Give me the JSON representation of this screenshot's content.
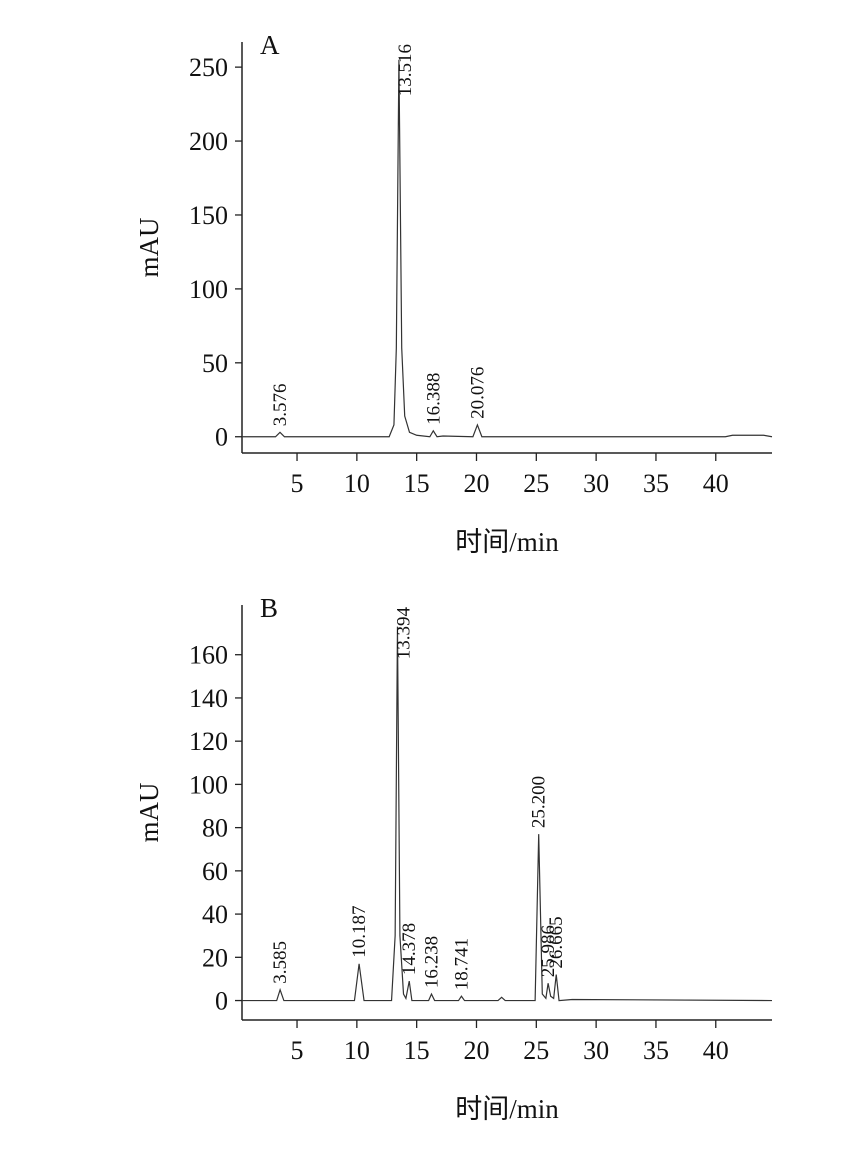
{
  "chart_data": [
    {
      "type": "line",
      "panel": "A",
      "ylabel": "mAU",
      "xlabel": "时间/min",
      "color": "#333333",
      "xlim": [
        0.4,
        44.7
      ],
      "ylim": [
        -11,
        267
      ],
      "xticks": [
        5,
        10,
        15,
        20,
        25,
        30,
        35,
        40
      ],
      "yticks": [
        0,
        50,
        100,
        150,
        200,
        250
      ],
      "x": [
        0.4,
        3.2,
        3.576,
        3.95,
        12.7,
        13.1,
        13.3,
        13.516,
        13.75,
        14.0,
        14.4,
        15.0,
        16.1,
        16.388,
        16.7,
        17.2,
        19.7,
        20.076,
        20.45,
        40.8,
        41.4,
        44.0,
        44.7
      ],
      "values": [
        0,
        0,
        3,
        0,
        0,
        8,
        60,
        255,
        60,
        14,
        3,
        1,
        0,
        4,
        0,
        0.5,
        0,
        8,
        0,
        0,
        1,
        1,
        0
      ],
      "annotations": [
        {
          "text": "3.576",
          "x": 3.576,
          "y": 3
        },
        {
          "text": "13.516",
          "x": 13.516,
          "y": 255
        },
        {
          "text": "16.388",
          "x": 16.388,
          "y": 4
        },
        {
          "text": "20.076",
          "x": 20.076,
          "y": 8
        }
      ]
    },
    {
      "type": "line",
      "panel": "B",
      "ylabel": "mAU",
      "xlabel": "时间/min",
      "color": "#333333",
      "xlim": [
        0.4,
        44.7
      ],
      "ylim": [
        -9,
        183
      ],
      "xticks": [
        5,
        10,
        15,
        20,
        25,
        30,
        35,
        40
      ],
      "yticks": [
        0,
        20,
        40,
        60,
        80,
        100,
        120,
        140,
        160
      ],
      "x": [
        0.4,
        3.3,
        3.585,
        3.9,
        9.8,
        10.187,
        10.6,
        12.9,
        13.2,
        13.394,
        13.6,
        13.9,
        14.1,
        14.378,
        14.6,
        16.0,
        16.238,
        16.5,
        18.5,
        18.741,
        19.0,
        21.8,
        22.1,
        22.4,
        24.9,
        25.2,
        25.5,
        25.8,
        25.986,
        26.2,
        26.45,
        26.665,
        26.9,
        28.0,
        44.7
      ],
      "values": [
        0,
        0,
        5,
        0,
        0,
        17,
        0,
        0,
        30,
        173,
        30,
        3,
        1,
        9,
        0,
        0,
        3,
        0,
        0,
        2,
        0,
        0,
        1.5,
        0,
        0,
        77,
        3,
        1,
        8,
        2,
        1,
        12,
        0,
        0.5,
        0
      ],
      "annotations": [
        {
          "text": "3.585",
          "x": 3.585,
          "y": 5
        },
        {
          "text": "10.187",
          "x": 10.187,
          "y": 17
        },
        {
          "text": "13.394",
          "x": 13.394,
          "y": 173
        },
        {
          "text": "14.378",
          "x": 14.378,
          "y": 9
        },
        {
          "text": "16.238",
          "x": 16.238,
          "y": 3
        },
        {
          "text": "18.741",
          "x": 18.741,
          "y": 2
        },
        {
          "text": "25.200",
          "x": 25.2,
          "y": 77
        },
        {
          "text": "25.986",
          "x": 25.986,
          "y": 8
        },
        {
          "text": "26.665",
          "x": 26.665,
          "y": 12
        }
      ]
    }
  ]
}
